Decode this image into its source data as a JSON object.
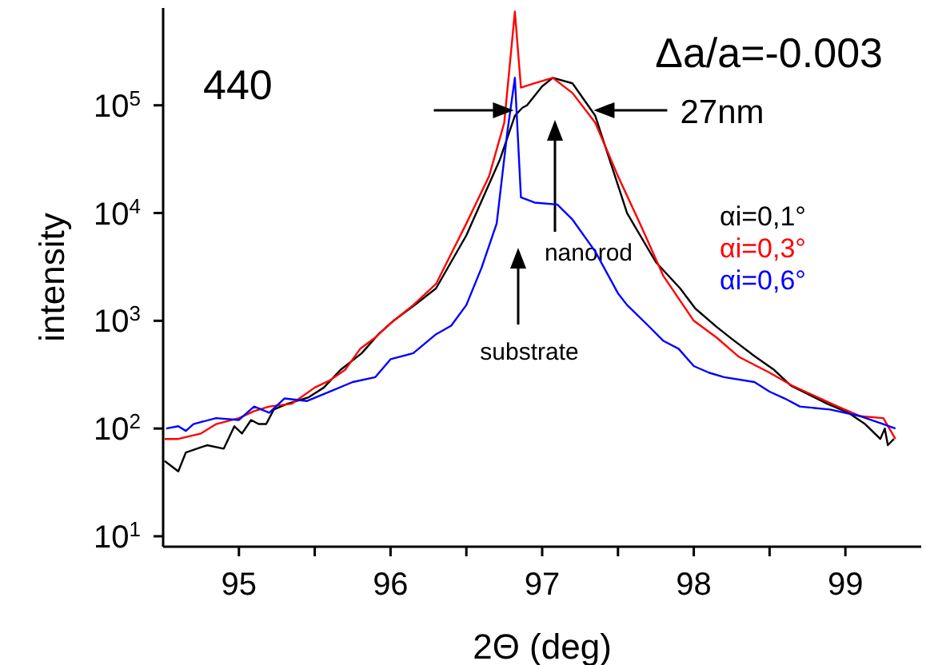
{
  "chart_data": {
    "type": "line",
    "xlabel": "2Θ (deg)",
    "ylabel": "intensity",
    "log": "y",
    "grid": false,
    "legend": "right",
    "marker": "none",
    "line_style": "solid",
    "xlim": [
      94.5,
      99.5
    ],
    "ylim": [
      8,
      800000
    ],
    "xticks": [
      95,
      {
        "value": 95.5,
        "label": null
      },
      96,
      {
        "value": 96.5,
        "label": null
      },
      97,
      {
        "value": 97.5,
        "label": null
      },
      98,
      {
        "value": 98.5,
        "label": null
      },
      99
    ],
    "yticks": [
      {
        "value": 10,
        "label": "10$^{1}$"
      },
      {
        "value": 100,
        "label": "10$^{2}$"
      },
      {
        "value": 1000,
        "label": "10$^{3}$"
      },
      {
        "value": 10000,
        "label": "10$^{4}$"
      },
      {
        "value": 100000,
        "label": "10$^{5}$"
      }
    ],
    "annotations": [
      "440",
      "Δa/a=-0.003",
      {
        "text": "27nm",
        "x": 97.34,
        "y": 90000
      },
      "nanorod",
      "substrate"
    ],
    "series": [
      {
        "name": "αi=0,1°",
        "color": "#000000",
        "x": [
          94.51,
          94.6,
          94.65,
          94.79,
          94.9,
          94.97,
          95.02,
          95.08,
          95.13,
          95.18,
          95.23,
          95.32,
          95.46,
          95.56,
          95.67,
          95.81,
          95.92,
          96.02,
          96.16,
          96.3,
          96.5,
          96.72,
          96.82,
          96.87,
          96.9,
          97.0,
          97.07,
          97.2,
          97.35,
          97.56,
          97.75,
          97.91,
          98.01,
          98.15,
          98.25,
          98.4,
          98.53,
          98.64,
          98.78,
          98.88,
          99.02,
          99.13,
          99.23,
          99.26,
          99.28,
          99.32
        ],
        "values": [
          50,
          40,
          60,
          70,
          65,
          105,
          90,
          120,
          110,
          110,
          150,
          170,
          195,
          240,
          350,
          500,
          750,
          1000,
          1400,
          2000,
          6200,
          31000,
          80000,
          95000,
          100000,
          150000,
          180000,
          160000,
          80000,
          10000,
          3500,
          2000,
          1300,
          880,
          680,
          470,
          350,
          250,
          200,
          170,
          140,
          110,
          80,
          100,
          70,
          80
        ]
      },
      {
        "name": "αi=0,3°",
        "color": "#ff0000",
        "x": [
          94.51,
          94.6,
          94.75,
          94.85,
          95.0,
          95.1,
          95.2,
          95.35,
          95.5,
          95.6,
          95.7,
          95.8,
          95.9,
          96.0,
          96.15,
          96.3,
          96.5,
          96.65,
          96.75,
          96.82,
          96.86,
          96.95,
          97.07,
          97.2,
          97.35,
          97.5,
          97.65,
          97.8,
          98.0,
          98.15,
          98.3,
          98.5,
          98.65,
          98.8,
          98.95,
          99.1,
          99.25,
          99.33
        ],
        "values": [
          80,
          80,
          90,
          110,
          125,
          145,
          160,
          170,
          240,
          280,
          350,
          550,
          700,
          950,
          1400,
          2200,
          8000,
          22000,
          69000,
          740000,
          146000,
          160000,
          180000,
          130000,
          69000,
          22000,
          7700,
          2600,
          1000,
          700,
          460,
          330,
          250,
          200,
          160,
          130,
          125,
          80
        ]
      },
      {
        "name": "αi=0,6°",
        "color": "#0000ff",
        "x": [
          94.52,
          94.6,
          94.65,
          94.7,
          94.85,
          95.0,
          95.1,
          95.2,
          95.3,
          95.45,
          95.6,
          95.75,
          95.9,
          96.0,
          96.15,
          96.3,
          96.4,
          96.5,
          96.6,
          96.7,
          96.77,
          96.82,
          96.86,
          96.95,
          97.1,
          97.2,
          97.35,
          97.5,
          97.56,
          97.7,
          97.8,
          97.9,
          98.0,
          98.1,
          98.2,
          98.4,
          98.5,
          98.6,
          98.7,
          98.9,
          99.1,
          99.25,
          99.33
        ],
        "values": [
          100,
          105,
          95,
          110,
          125,
          120,
          160,
          140,
          190,
          180,
          220,
          270,
          300,
          440,
          500,
          750,
          900,
          1400,
          3100,
          8000,
          56000,
          180000,
          14000,
          12500,
          12000,
          8700,
          4400,
          1800,
          1400,
          900,
          650,
          550,
          380,
          330,
          300,
          270,
          220,
          190,
          160,
          150,
          130,
          110,
          100
        ]
      }
    ]
  }
}
